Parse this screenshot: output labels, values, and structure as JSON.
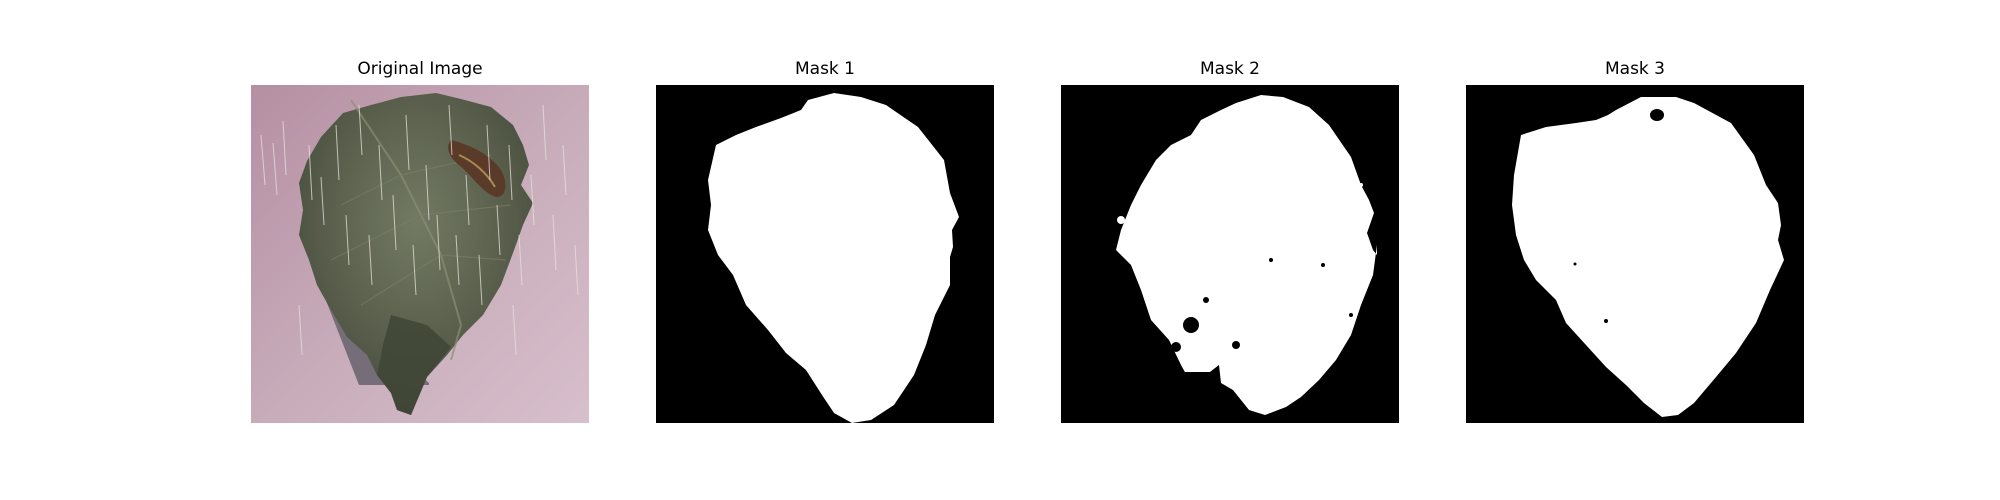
{
  "figure": {
    "panels": [
      {
        "title": "Original Image"
      },
      {
        "title": "Mask 1"
      },
      {
        "title": "Mask 2"
      },
      {
        "title": "Mask 3"
      }
    ]
  },
  "colors": {
    "page_background": "#ffffff",
    "photo_background": "#c4a8b8",
    "leaf_dark": "#4a5040",
    "leaf_light": "#6f7560",
    "lesion_brown": "#5a3a28",
    "shadow_gray": "#6b6670",
    "mask_background": "#000000",
    "mask_foreground": "#ffffff"
  }
}
